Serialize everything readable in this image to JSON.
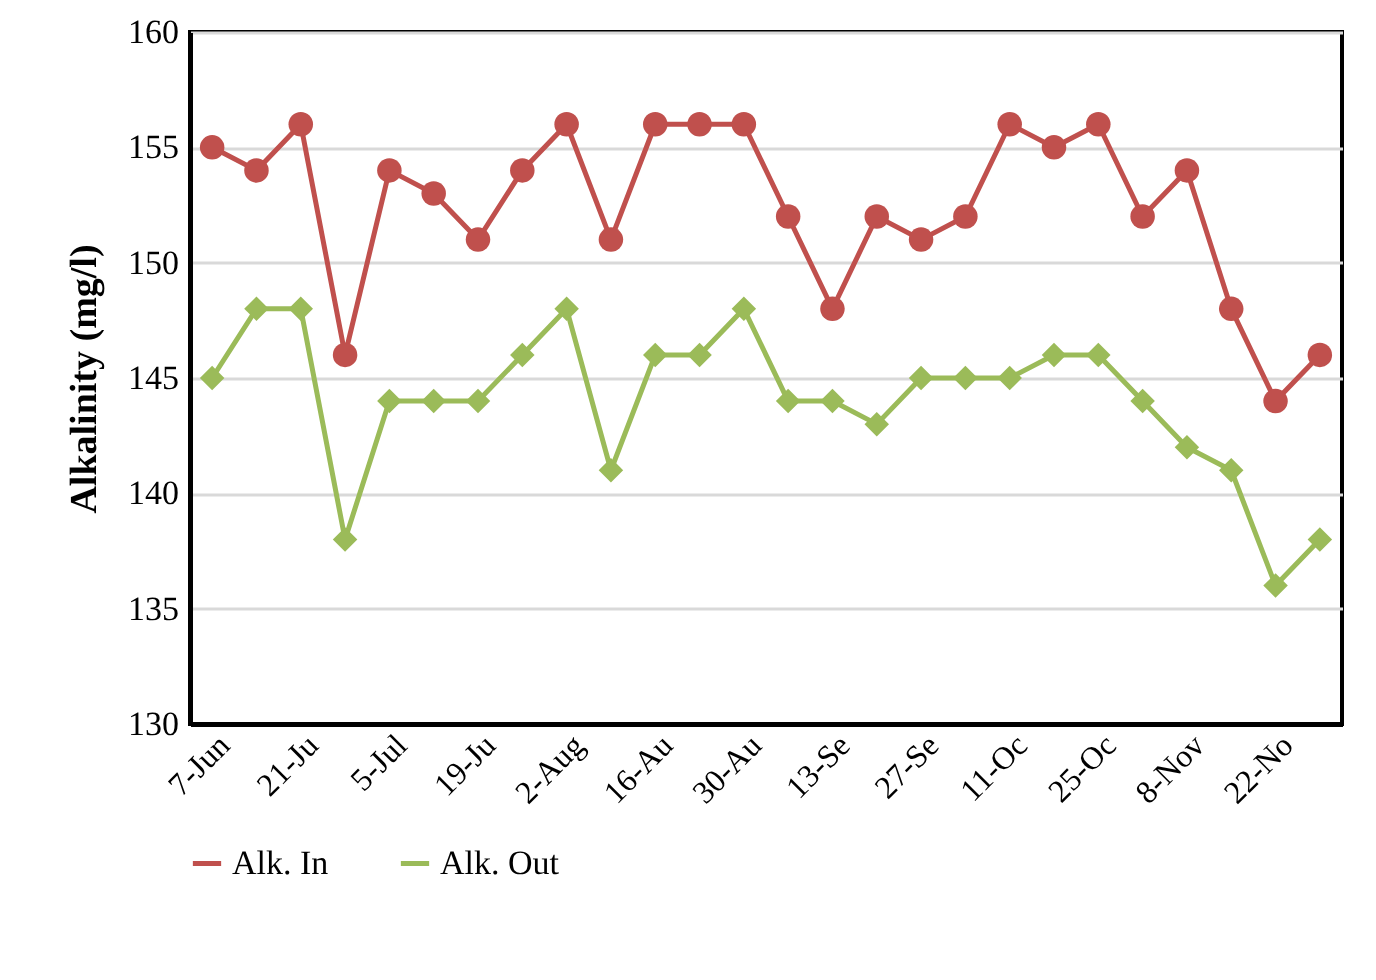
{
  "chart_data": {
    "type": "line",
    "ylabel": "Alkalinity (mg/l)",
    "categories": [
      "7-Jun",
      null,
      "21-Ju",
      null,
      "5-Jul",
      null,
      "19-Ju",
      null,
      "2-Aug",
      null,
      "16-Au",
      null,
      "30-Au",
      null,
      "13-Se",
      null,
      "27-Se",
      null,
      "11-Oc",
      null,
      "25-Oc",
      null,
      "8-Nov",
      null,
      "22-No",
      null
    ],
    "series": [
      {
        "name": "Alk. In",
        "color": "#c0504d",
        "marker": "circle",
        "values": [
          155,
          154,
          156,
          146,
          154,
          153,
          151,
          154,
          156,
          151,
          156,
          156,
          156,
          152,
          148,
          152,
          151,
          152,
          156,
          155,
          156,
          152,
          154,
          148,
          144,
          146
        ]
      },
      {
        "name": "Alk. Out",
        "color": "#9bbb59",
        "marker": "diamond",
        "values": [
          145,
          148,
          148,
          138,
          144,
          144,
          144,
          146,
          148,
          141,
          146,
          146,
          148,
          144,
          144,
          143,
          145,
          145,
          145,
          146,
          146,
          144,
          142,
          141,
          136,
          138
        ]
      }
    ],
    "ylim": [
      130,
      160
    ],
    "yticks": [
      130,
      135,
      140,
      145,
      150,
      155,
      160
    ],
    "grid": "y",
    "legend": "bottom"
  }
}
